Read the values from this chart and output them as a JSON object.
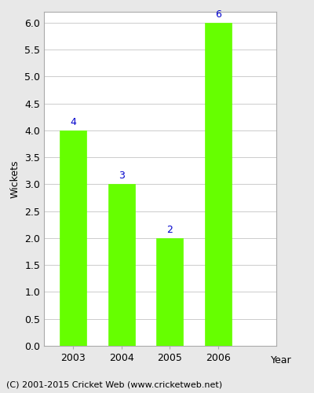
{
  "categories": [
    "2003",
    "2004",
    "2005",
    "2006"
  ],
  "values": [
    4,
    3,
    2,
    6
  ],
  "bar_color": "#66ff00",
  "bar_edgecolor": "#66ff00",
  "label_color": "#0000cc",
  "label_fontsize": 9,
  "xlabel": "Year",
  "ylabel": "Wickets",
  "ylim": [
    0,
    6.2
  ],
  "yticks": [
    0.0,
    0.5,
    1.0,
    1.5,
    2.0,
    2.5,
    3.0,
    3.5,
    4.0,
    4.5,
    5.0,
    5.5,
    6.0
  ],
  "background_color": "#e8e8e8",
  "axes_background": "#ffffff",
  "grid_color": "#cccccc",
  "caption": "(C) 2001-2015 Cricket Web (www.cricketweb.net)",
  "caption_fontsize": 8,
  "bar_width": 0.55,
  "xlabel_fontsize": 9,
  "ylabel_fontsize": 9,
  "tick_fontsize": 9,
  "spine_color": "#aaaaaa"
}
